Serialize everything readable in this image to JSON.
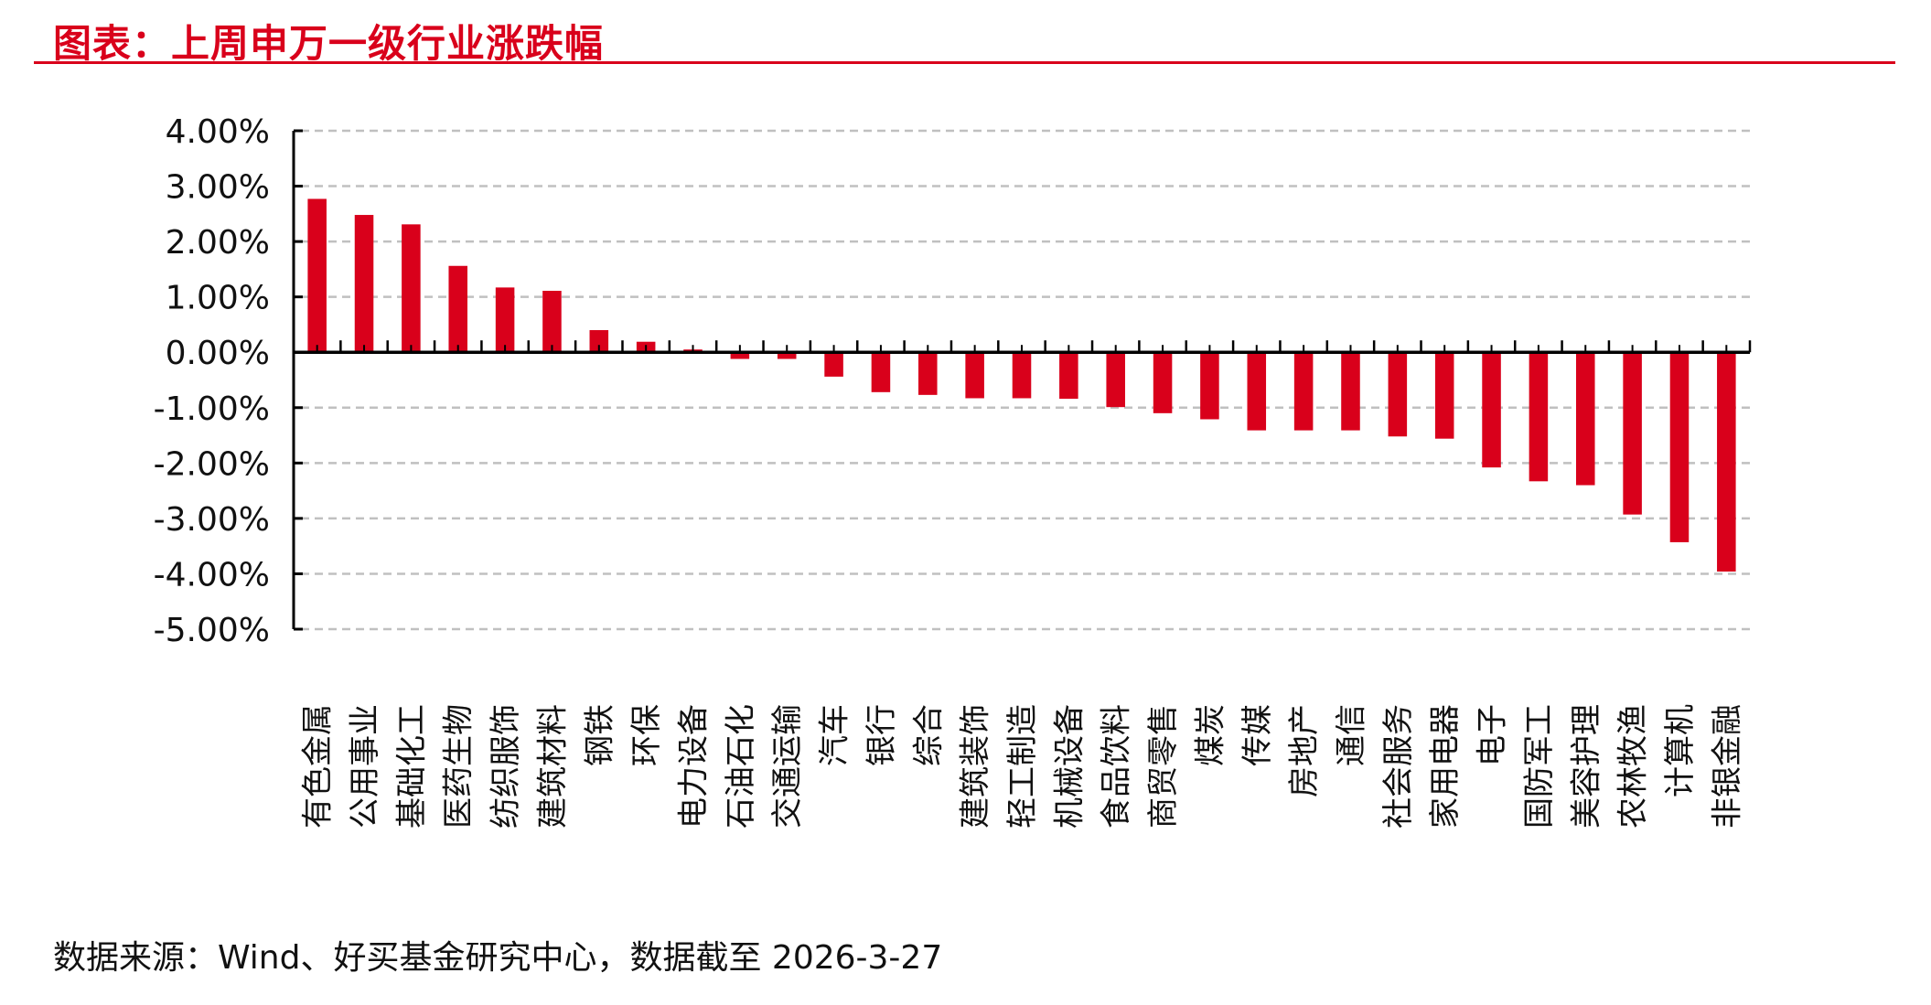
{
  "header": {
    "title": "图表：上周申万一级行业涨跌幅"
  },
  "footer": {
    "source": "数据来源：Wind、好买基金研究中心，数据截至 2026-3-27"
  },
  "colors": {
    "bar": "#d9001b",
    "title": "#d9001b",
    "grid": "#c0c0c0"
  },
  "chart_data": {
    "type": "bar",
    "title": "上周申万一级行业涨跌幅",
    "xlabel": "",
    "ylabel": "",
    "ylim": [
      -5,
      4
    ],
    "yticks": [
      4,
      3,
      2,
      1,
      0,
      -1,
      -2,
      -3,
      -4,
      -5
    ],
    "ytick_labels": [
      "4.00%",
      "3.00%",
      "2.00%",
      "1.00%",
      "0.00%",
      "-1.00%",
      "-2.00%",
      "-3.00%",
      "-4.00%",
      "-5.00%"
    ],
    "grid": true,
    "unit": "%",
    "categories": [
      "有色金属",
      "公用事业",
      "基础化工",
      "医药生物",
      "纺织服饰",
      "建筑材料",
      "钢铁",
      "环保",
      "电力设备",
      "石油石化",
      "交通运输",
      "汽车",
      "银行",
      "综合",
      "建筑装饰",
      "轻工制造",
      "机械设备",
      "食品饮料",
      "商贸零售",
      "煤炭",
      "传媒",
      "房地产",
      "通信",
      "社会服务",
      "家用电器",
      "电子",
      "国防军工",
      "美容护理",
      "农林牧渔",
      "计算机",
      "非银金融"
    ],
    "values": [
      2.77,
      2.48,
      2.31,
      1.56,
      1.17,
      1.11,
      0.4,
      0.19,
      0.05,
      -0.12,
      -0.12,
      -0.44,
      -0.72,
      -0.77,
      -0.83,
      -0.83,
      -0.84,
      -0.99,
      -1.1,
      -1.21,
      -1.41,
      -1.41,
      -1.41,
      -1.52,
      -1.56,
      -2.08,
      -2.33,
      -2.4,
      -2.93,
      -3.43,
      -3.96
    ]
  }
}
